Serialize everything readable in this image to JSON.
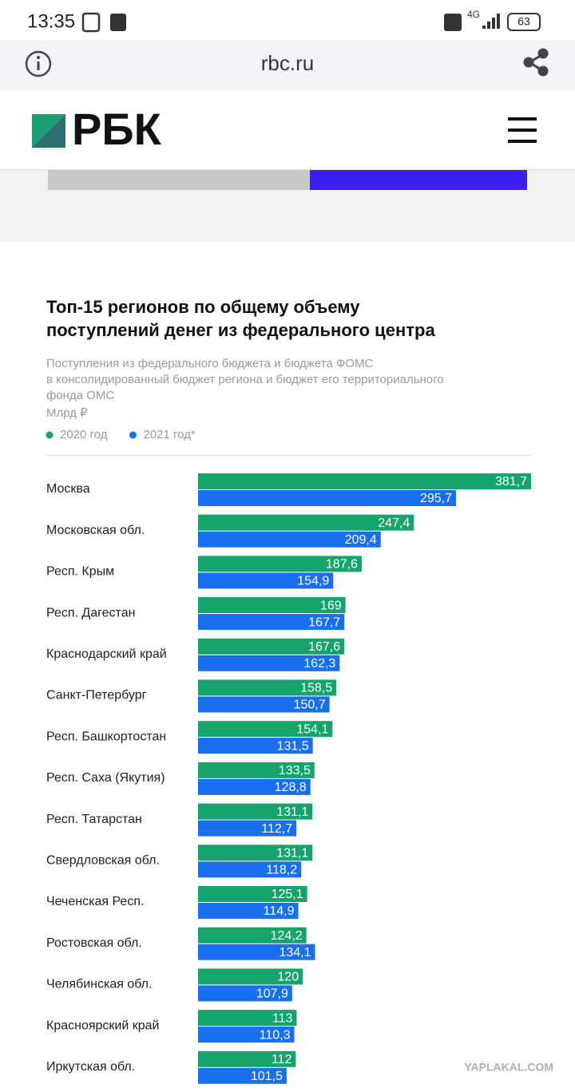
{
  "status_bar": {
    "time": "13:35",
    "network": "4G",
    "battery": "63"
  },
  "browser": {
    "url": "rbc.ru"
  },
  "header": {
    "logo": "РБК"
  },
  "chart_data": {
    "type": "hbar",
    "title": [
      "Топ-15 регионов по общему объему",
      "поступлений денег из федерального центра"
    ],
    "subtitle": [
      "Поступления из федерального бюджета и бюджета ФОМС",
      "в консолидированный бюджет региона и бюджет его территориального",
      "фонда ОМС"
    ],
    "units": "Млрд ₽",
    "categories": [
      "Москва",
      "Московская обл.",
      "Респ. Крым",
      "Респ. Дагестан",
      "Краснодарский край",
      "Санкт-Петербург",
      "Респ. Башкортостан",
      "Респ. Саха (Якутия)",
      "Респ. Татарстан",
      "Свердловская обл.",
      "Чеченская Респ.",
      "Ростовская обл.",
      "Челябинская обл.",
      "Красноярский край",
      "Иркутская обл."
    ],
    "series": [
      {
        "name": "2020 год",
        "color": "#16a36c",
        "values": [
          381.7,
          247.4,
          187.6,
          169,
          167.6,
          158.5,
          154.1,
          133.5,
          131.1,
          131.1,
          125.1,
          124.2,
          120,
          113,
          112
        ],
        "value_labels": [
          "381,7",
          "247,4",
          "187,6",
          "169",
          "167,6",
          "158,5",
          "154,1",
          "133,5",
          "131,1",
          "131,1",
          "125,1",
          "124,2",
          "120",
          "113",
          "112"
        ]
      },
      {
        "name": "2021 год*",
        "color": "#1a6ef0",
        "values": [
          295.7,
          209.4,
          154.9,
          167.7,
          162.3,
          150.7,
          131.5,
          128.8,
          112.7,
          118.2,
          114.9,
          134.1,
          107.9,
          110.3,
          101.5
        ],
        "value_labels": [
          "295,7",
          "209,4",
          "154,9",
          "167,7",
          "162,3",
          "150,7",
          "131,5",
          "128,8",
          "112,7",
          "118,2",
          "114,9",
          "134,1",
          "107,9",
          "110,3",
          "101,5"
        ]
      }
    ]
  },
  "watermark": "YAPLAKAL.COM"
}
